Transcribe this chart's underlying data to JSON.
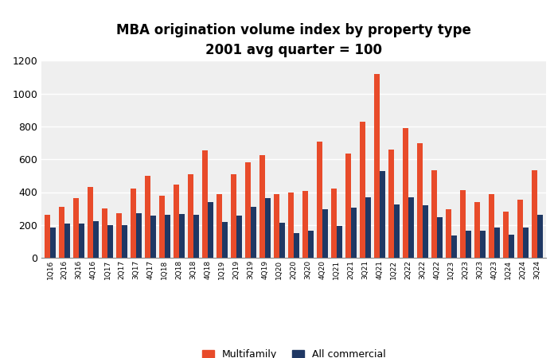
{
  "title": "MBA origination volume index by property type",
  "subtitle": "2001 avg quarter = 100",
  "categories": [
    "1Q16",
    "2Q16",
    "3Q16",
    "4Q16",
    "1Q17",
    "2Q17",
    "3Q17",
    "4Q17",
    "1Q18",
    "2Q18",
    "3Q18",
    "4Q18",
    "1Q19",
    "2Q19",
    "3Q19",
    "4Q19",
    "1Q20",
    "2Q20",
    "3Q20",
    "4Q20",
    "1Q21",
    "2Q21",
    "3Q21",
    "4Q21",
    "1Q22",
    "2Q22",
    "3Q22",
    "4Q22",
    "1Q23",
    "2Q23",
    "3Q23",
    "4Q23",
    "1Q24",
    "2Q24",
    "3Q24"
  ],
  "multifamily": [
    260,
    310,
    365,
    430,
    300,
    270,
    420,
    500,
    380,
    445,
    510,
    655,
    390,
    510,
    580,
    625,
    390,
    400,
    405,
    710,
    420,
    635,
    830,
    1120,
    660,
    790,
    700,
    535,
    295,
    410,
    340,
    390,
    280,
    355,
    535
  ],
  "all_commercial": [
    185,
    210,
    210,
    225,
    200,
    200,
    270,
    255,
    260,
    265,
    260,
    340,
    220,
    255,
    310,
    365,
    215,
    150,
    165,
    295,
    195,
    305,
    370,
    530,
    325,
    370,
    320,
    245,
    135,
    165,
    165,
    185,
    140,
    185,
    260
  ],
  "multifamily_color": "#E84B2A",
  "all_commercial_color": "#1F3864",
  "plot_bg_color": "#EFEFEF",
  "fig_bg_color": "#FFFFFF",
  "ylim": [
    0,
    1200
  ],
  "yticks": [
    0,
    200,
    400,
    600,
    800,
    1000,
    1200
  ],
  "legend_labels": [
    "Multifamily",
    "All commercial"
  ],
  "title_fontsize": 12,
  "subtitle_fontsize": 11
}
